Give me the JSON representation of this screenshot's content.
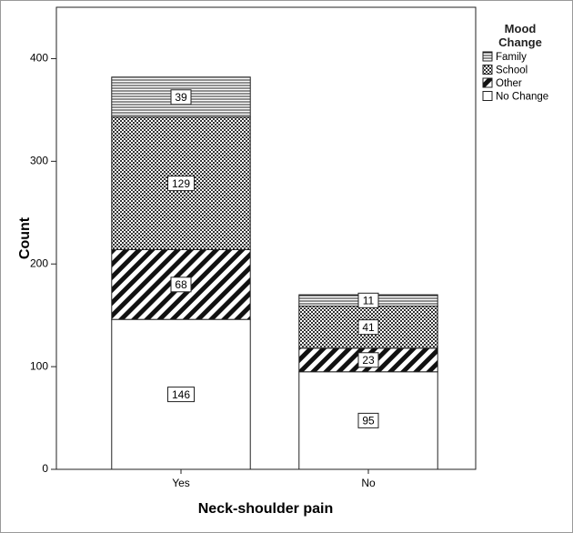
{
  "chart_data": {
    "type": "stacked-bar",
    "x_label": "Neck-shoulder pain",
    "y_label": "Count",
    "categories": [
      "Yes",
      "No"
    ],
    "series": [
      {
        "name": "No Change",
        "color": "#ffffff",
        "pattern": "none",
        "values": [
          146,
          95
        ]
      },
      {
        "name": "Other",
        "color": "#000000",
        "pattern": "diagonal",
        "values": [
          68,
          23
        ]
      },
      {
        "name": "School",
        "color": "#000000",
        "pattern": "crosshatch",
        "values": [
          129,
          41
        ]
      },
      {
        "name": "Family",
        "color": "#000000",
        "pattern": "horizontal",
        "values": [
          39,
          11
        ]
      }
    ],
    "legend_title": "Mood Change",
    "legend": "top-right",
    "ylim": [
      0,
      450
    ],
    "yticks": [
      0,
      100,
      200,
      300,
      400
    ],
    "grid": false
  }
}
